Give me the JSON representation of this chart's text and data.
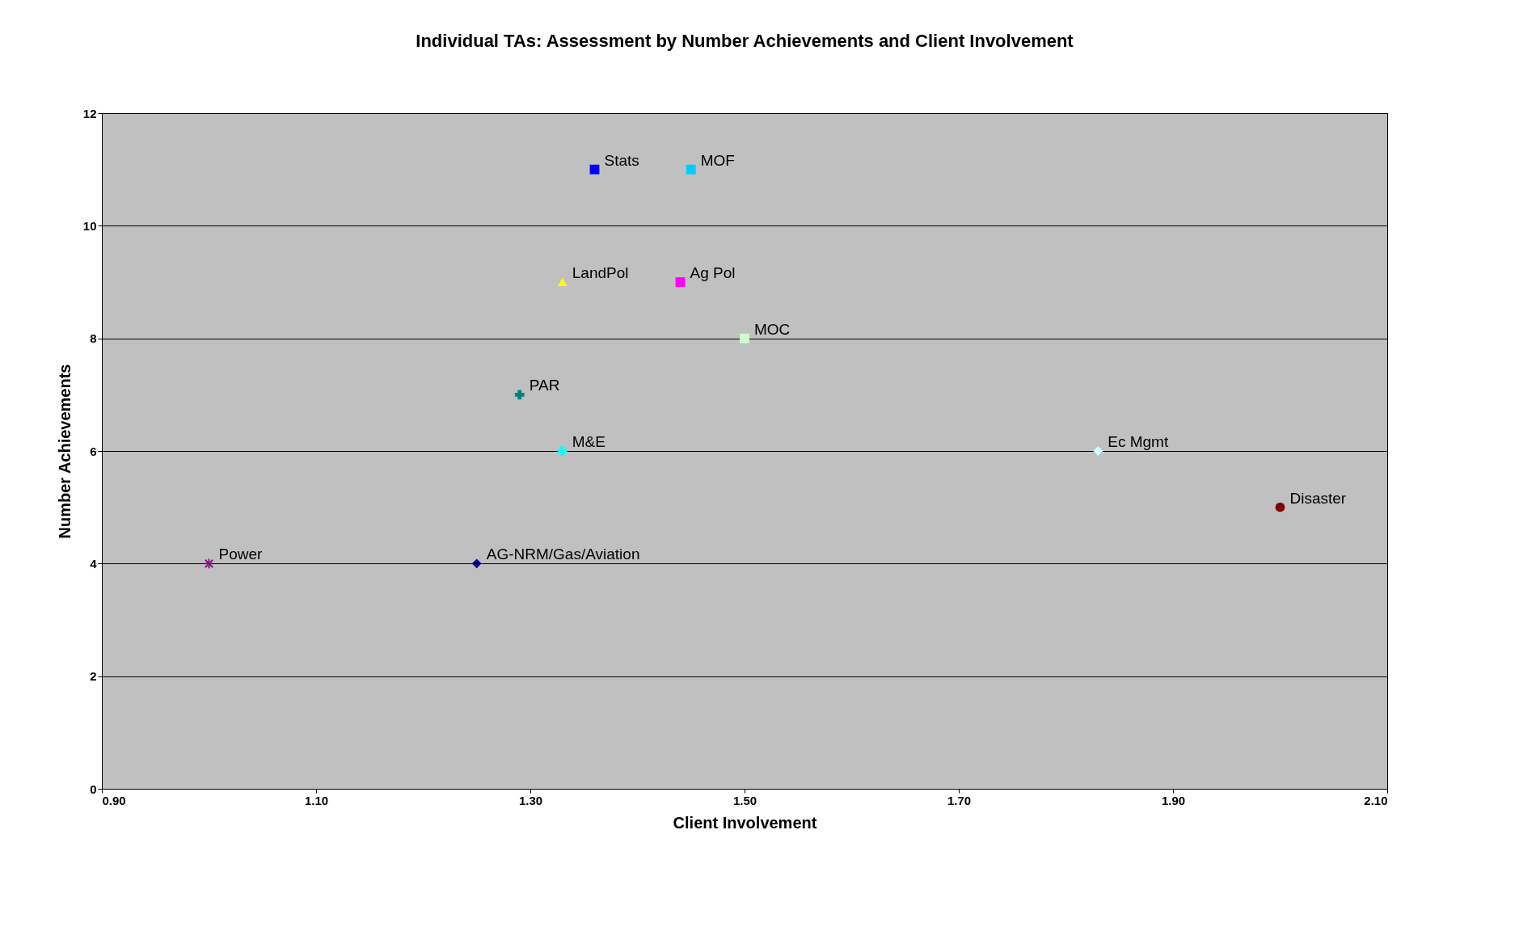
{
  "chart_data": {
    "type": "scatter",
    "title": "Individual TAs:  Assessment by Number Achievements and Client Involvement",
    "xlabel": "Client Involvement",
    "ylabel": "Number Achievements",
    "xlim": [
      0.9,
      2.1
    ],
    "xticks": [
      {
        "value": 0.9,
        "label": "0.90"
      },
      {
        "value": 1.1,
        "label": "1.10"
      },
      {
        "value": 1.3,
        "label": "1.30"
      },
      {
        "value": 1.5,
        "label": "1.50"
      },
      {
        "value": 1.7,
        "label": "1.70"
      },
      {
        "value": 1.9,
        "label": "1.90"
      },
      {
        "value": 2.1,
        "label": "2.10"
      }
    ],
    "ylim": [
      0,
      12
    ],
    "yticks": [
      {
        "value": 0,
        "label": "0"
      },
      {
        "value": 2,
        "label": "2"
      },
      {
        "value": 4,
        "label": "4"
      },
      {
        "value": 6,
        "label": "6"
      },
      {
        "value": 8,
        "label": "8"
      },
      {
        "value": 10,
        "label": "10"
      },
      {
        "value": 12,
        "label": "12"
      }
    ],
    "grid": "y",
    "series": [
      {
        "name": "Stats",
        "color": "#0000ff",
        "marker": "square",
        "x": [
          1.36
        ],
        "values": [
          11
        ]
      },
      {
        "name": "MOF",
        "color": "#00ccff",
        "marker": "square",
        "x": [
          1.45
        ],
        "values": [
          11
        ]
      },
      {
        "name": "LandPol",
        "color": "#ffff00",
        "marker": "triangle",
        "x": [
          1.33
        ],
        "values": [
          9
        ]
      },
      {
        "name": "Ag Pol",
        "color": "#ff00ff",
        "marker": "square",
        "x": [
          1.44
        ],
        "values": [
          9
        ]
      },
      {
        "name": "MOC",
        "color": "#ccffcc",
        "marker": "square",
        "x": [
          1.5
        ],
        "values": [
          8
        ]
      },
      {
        "name": "PAR",
        "color": "#008080",
        "marker": "cross",
        "x": [
          1.29
        ],
        "values": [
          7
        ]
      },
      {
        "name": "M&E",
        "color": "#00ffff",
        "marker": "cross",
        "x": [
          1.33
        ],
        "values": [
          6
        ]
      },
      {
        "name": "Ec Mgmt",
        "color": "#ccffff",
        "marker": "diamond",
        "x": [
          1.83
        ],
        "values": [
          6
        ]
      },
      {
        "name": "Disaster",
        "color": "#800000",
        "marker": "circle",
        "x": [
          2.0
        ],
        "values": [
          5
        ]
      },
      {
        "name": "Power",
        "color": "#800080",
        "marker": "star",
        "x": [
          1.0
        ],
        "values": [
          4
        ]
      },
      {
        "name": "AG-NRM/Gas/Aviation",
        "color": "#000080",
        "marker": "diamond",
        "x": [
          1.25
        ],
        "values": [
          4
        ]
      }
    ]
  }
}
